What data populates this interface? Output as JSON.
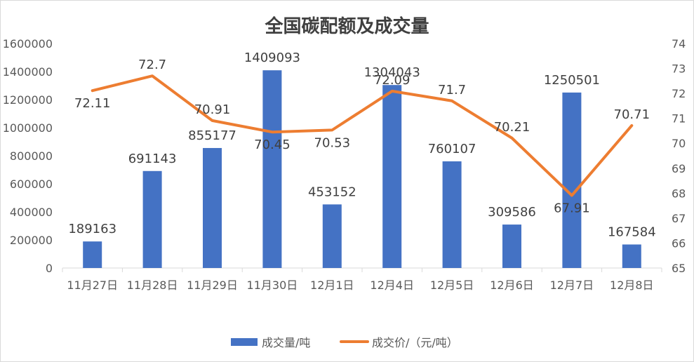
{
  "chart_data": {
    "type": "bar",
    "title": "全国碳配额及成交量",
    "categories": [
      "11月27日",
      "11月28日",
      "11月29日",
      "11月30日",
      "12月1日",
      "12月4日",
      "12月5日",
      "12月6日",
      "12月7日",
      "12月8日"
    ],
    "series": [
      {
        "name": "成交量/吨",
        "type": "bar",
        "axis": "left",
        "color": "#4472C4",
        "values": [
          189163,
          691143,
          855177,
          1409093,
          453152,
          1304043,
          760107,
          309586,
          1250501,
          167584
        ],
        "labels": [
          "189163",
          "691143",
          "855177",
          "1409093",
          "453152",
          "1304043",
          "760107",
          "309586",
          "1250501",
          "167584"
        ]
      },
      {
        "name": "成交价/（元/吨）",
        "type": "line",
        "axis": "right",
        "color": "#ED7D31",
        "values": [
          72.11,
          72.7,
          70.91,
          70.45,
          70.53,
          72.09,
          71.7,
          70.21,
          67.91,
          70.71
        ],
        "labels": [
          "72.11",
          "72.7",
          "70.91",
          "70.45",
          "70.53",
          "72.09",
          "71.7",
          "70.21",
          "67.91",
          "70.71"
        ]
      }
    ],
    "y_left": {
      "min": 0,
      "max": 1600000,
      "step": 200000
    },
    "y_right": {
      "min": 65,
      "max": 74,
      "step": 1
    },
    "grid": false,
    "legend_position": "bottom"
  }
}
